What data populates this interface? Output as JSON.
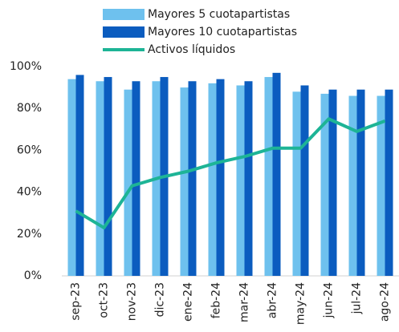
{
  "chart_data": {
    "type": "bar_line",
    "categories": [
      "sep-23",
      "oct-23",
      "nov-23",
      "dic-23",
      "ene-24",
      "feb-24",
      "mar-24",
      "abr-24",
      "may-24",
      "jun-24",
      "jul-24",
      "ago-24"
    ],
    "series": [
      {
        "name": "Mayores 5 cuotapartistas",
        "type": "bar",
        "color": "#6ec1ee",
        "values": [
          94,
          93,
          89,
          93,
          90,
          92,
          91,
          95,
          88,
          87,
          86,
          86
        ]
      },
      {
        "name": "Mayores 10 cuotapartistas",
        "type": "bar",
        "color": "#0b5cbf",
        "values": [
          96,
          95,
          93,
          95,
          93,
          94,
          93,
          97,
          91,
          89,
          89,
          89
        ]
      },
      {
        "name": "Activos líquidos",
        "type": "line",
        "color": "#1db496",
        "values": [
          31,
          23,
          43,
          47,
          50,
          54,
          57,
          61,
          61,
          75,
          69,
          74
        ]
      }
    ],
    "ylim": [
      0,
      100
    ],
    "yticks": [
      {
        "value": 0,
        "label": "0%"
      },
      {
        "value": 20,
        "label": "20%"
      },
      {
        "value": 40,
        "label": "40%"
      },
      {
        "value": 60,
        "label": "60%"
      },
      {
        "value": 80,
        "label": "80%"
      },
      {
        "value": 100,
        "label": "100%"
      }
    ],
    "grid": false
  }
}
